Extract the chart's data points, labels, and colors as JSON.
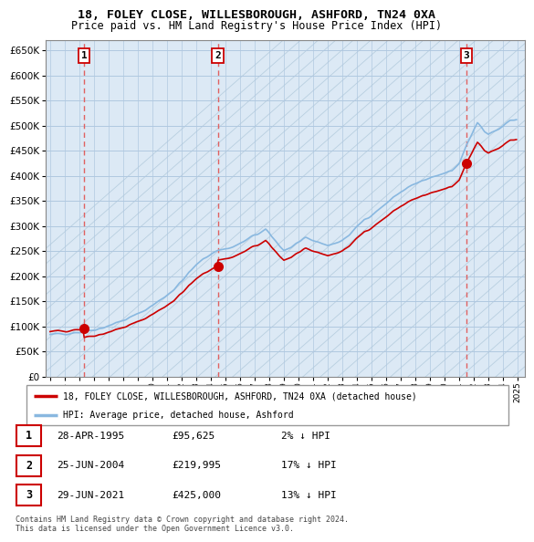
{
  "title1": "18, FOLEY CLOSE, WILLESBOROUGH, ASHFORD, TN24 0XA",
  "title2": "Price paid vs. HM Land Registry's House Price Index (HPI)",
  "ylabel_ticks": [
    0,
    50000,
    100000,
    150000,
    200000,
    250000,
    300000,
    350000,
    400000,
    450000,
    500000,
    550000,
    600000,
    650000
  ],
  "xlim_start": 1992.7,
  "xlim_end": 2025.5,
  "ylim_min": 0,
  "ylim_max": 670000,
  "sale_points": [
    {
      "year": 1995.32,
      "price": 95625,
      "label": "1"
    },
    {
      "year": 2004.48,
      "price": 219995,
      "label": "2"
    },
    {
      "year": 2021.49,
      "price": 425000,
      "label": "3"
    }
  ],
  "sale_vlines": [
    1995.32,
    2004.48,
    2021.49
  ],
  "hpi_color": "#89b8e0",
  "sold_color": "#cc0000",
  "bg_chart": "#dce9f5",
  "bg_hatch": "#c8d8e8",
  "grid_color": "#b0c8e0",
  "legend_label1": "18, FOLEY CLOSE, WILLESBOROUGH, ASHFORD, TN24 0XA (detached house)",
  "legend_label2": "HPI: Average price, detached house, Ashford",
  "table_data": [
    [
      "1",
      "28-APR-1995",
      "£95,625",
      "2% ↓ HPI"
    ],
    [
      "2",
      "25-JUN-2004",
      "£219,995",
      "17% ↓ HPI"
    ],
    [
      "3",
      "29-JUN-2021",
      "£425,000",
      "13% ↓ HPI"
    ]
  ],
  "footnote": "Contains HM Land Registry data © Crown copyright and database right 2024.\nThis data is licensed under the Open Government Licence v3.0.",
  "xticks": [
    1993,
    1994,
    1995,
    1996,
    1997,
    1998,
    1999,
    2000,
    2001,
    2002,
    2003,
    2004,
    2005,
    2006,
    2007,
    2008,
    2009,
    2010,
    2011,
    2012,
    2013,
    2014,
    2015,
    2016,
    2017,
    2018,
    2019,
    2020,
    2021,
    2022,
    2023,
    2024,
    2025
  ]
}
